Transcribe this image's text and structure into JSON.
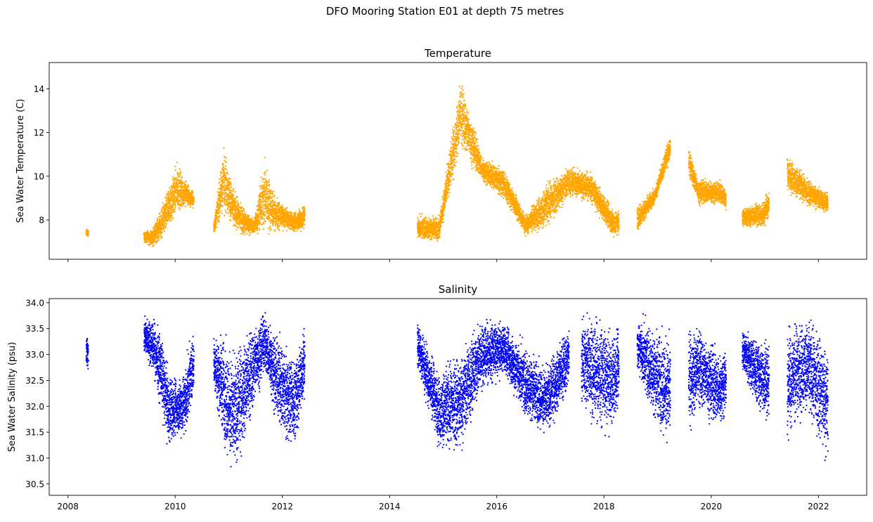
{
  "chart_data": {
    "suptitle": "DFO Mooring Station E01 at depth 75 metres",
    "x_tick_labels": [
      "2008",
      "2010",
      "2012",
      "2014",
      "2016",
      "2018",
      "2020",
      "2022"
    ],
    "panels": [
      {
        "type": "scatter",
        "title": "Temperature",
        "ylabel": "Sea Water Temperature (C)",
        "color": "#ffa500",
        "xlim": [
          2007.65,
          2022.9
        ],
        "ylim": [
          6.2,
          15.2
        ],
        "y_ticks": [
          8,
          10,
          12,
          14
        ],
        "y_tick_labels": [
          "8",
          "10",
          "12",
          "14"
        ],
        "deployments": [
          {
            "start": 2008.34,
            "end": 2008.38,
            "lo": [
              7.2,
              7.2
            ],
            "hi": [
              7.6,
              7.6
            ]
          },
          {
            "start": 2009.42,
            "end": 2010.35,
            "lo": [
              6.9,
              6.7,
              6.9,
              7.3,
              8.0,
              8.4,
              8.5
            ],
            "hi": [
              7.5,
              7.7,
              8.6,
              9.8,
              10.9,
              10.0,
              9.3
            ]
          },
          {
            "start": 2010.72,
            "end": 2012.42,
            "lo": [
              7.2,
              8.0,
              7.4,
              7.1,
              7.3,
              7.0,
              7.3,
              7.5,
              7.3,
              7.4
            ],
            "hi": [
              8.0,
              11.8,
              9.5,
              8.7,
              8.1,
              11.2,
              9.3,
              8.7,
              8.4,
              9.0
            ]
          },
          {
            "start": 2014.52,
            "end": 2022.18,
            "lo": [
              7.0,
              6.9,
              11.0,
              9.6,
              8.8,
              7.2,
              7.4,
              8.9,
              8.7,
              7.1,
              7.0,
              8.7,
              11.5,
              8.6,
              8.6,
              7.6,
              7.5,
              9.2,
              8.5,
              8.2
            ],
            "hi": [
              8.3,
              8.3,
              14.8,
              11.0,
              10.5,
              8.3,
              9.9,
              10.6,
              10.3,
              8.7,
              8.6,
              9.6,
              13.2,
              10.0,
              9.9,
              8.6,
              9.0,
              11.3,
              10.1,
              9.3
            ]
          }
        ],
        "gaps": [
          [
            2019.24,
            2019.58
          ],
          [
            2020.28,
            2020.58
          ],
          [
            2021.08,
            2021.42
          ],
          [
            2018.28,
            2018.62
          ]
        ]
      },
      {
        "type": "scatter",
        "title": "Salinity",
        "ylabel": "Sea Water Salinity (psu)",
        "color": "#0000ff",
        "xlim": [
          2007.65,
          2022.9
        ],
        "ylim": [
          30.28,
          34.08
        ],
        "y_ticks": [
          30.5,
          31.0,
          31.5,
          32.0,
          32.5,
          33.0,
          33.5,
          34.0
        ],
        "y_tick_labels": [
          "30.5",
          "31.0",
          "31.5",
          "32.0",
          "32.5",
          "33.0",
          "33.5",
          "34.0"
        ],
        "deployments": [
          {
            "start": 2008.34,
            "end": 2008.38,
            "lo": [
              32.6,
              32.6
            ],
            "hi": [
              33.5,
              33.5
            ]
          },
          {
            "start": 2009.42,
            "end": 2010.35,
            "lo": [
              32.9,
              32.6,
              31.8,
              31.0,
              31.3,
              31.2,
              32.2
            ],
            "hi": [
              33.8,
              33.8,
              33.6,
              32.8,
              32.6,
              33.0,
              33.6
            ]
          },
          {
            "start": 2010.72,
            "end": 2012.42,
            "lo": [
              32.2,
              31.0,
              30.4,
              31.1,
              31.8,
              32.6,
              31.6,
              31.1,
              31.1,
              32.0
            ],
            "hi": [
              33.5,
              33.6,
              33.2,
              33.5,
              33.8,
              33.9,
              33.7,
              33.4,
              33.1,
              33.7
            ]
          },
          {
            "start": 2014.52,
            "end": 2022.18,
            "lo": [
              32.6,
              31.0,
              30.9,
              32.2,
              32.5,
              31.6,
              31.3,
              32.2,
              31.5,
              31.3,
              32.7,
              31.5,
              30.7,
              31.8,
              31.4,
              32.6,
              31.6,
              31.1,
              31.7,
              30.6
            ],
            "hi": [
              33.8,
              32.8,
              33.3,
              33.8,
              33.7,
              33.3,
              32.9,
              33.7,
              34.0,
              33.6,
              33.9,
              33.7,
              33.6,
              33.7,
              33.2,
              33.6,
              33.4,
              33.8,
              33.9,
              33.5
            ]
          }
        ],
        "gaps": [
          [
            2017.35,
            2017.58
          ],
          [
            2018.28,
            2018.62
          ],
          [
            2019.24,
            2019.58
          ],
          [
            2020.28,
            2020.58
          ],
          [
            2021.08,
            2021.42
          ]
        ]
      }
    ]
  }
}
